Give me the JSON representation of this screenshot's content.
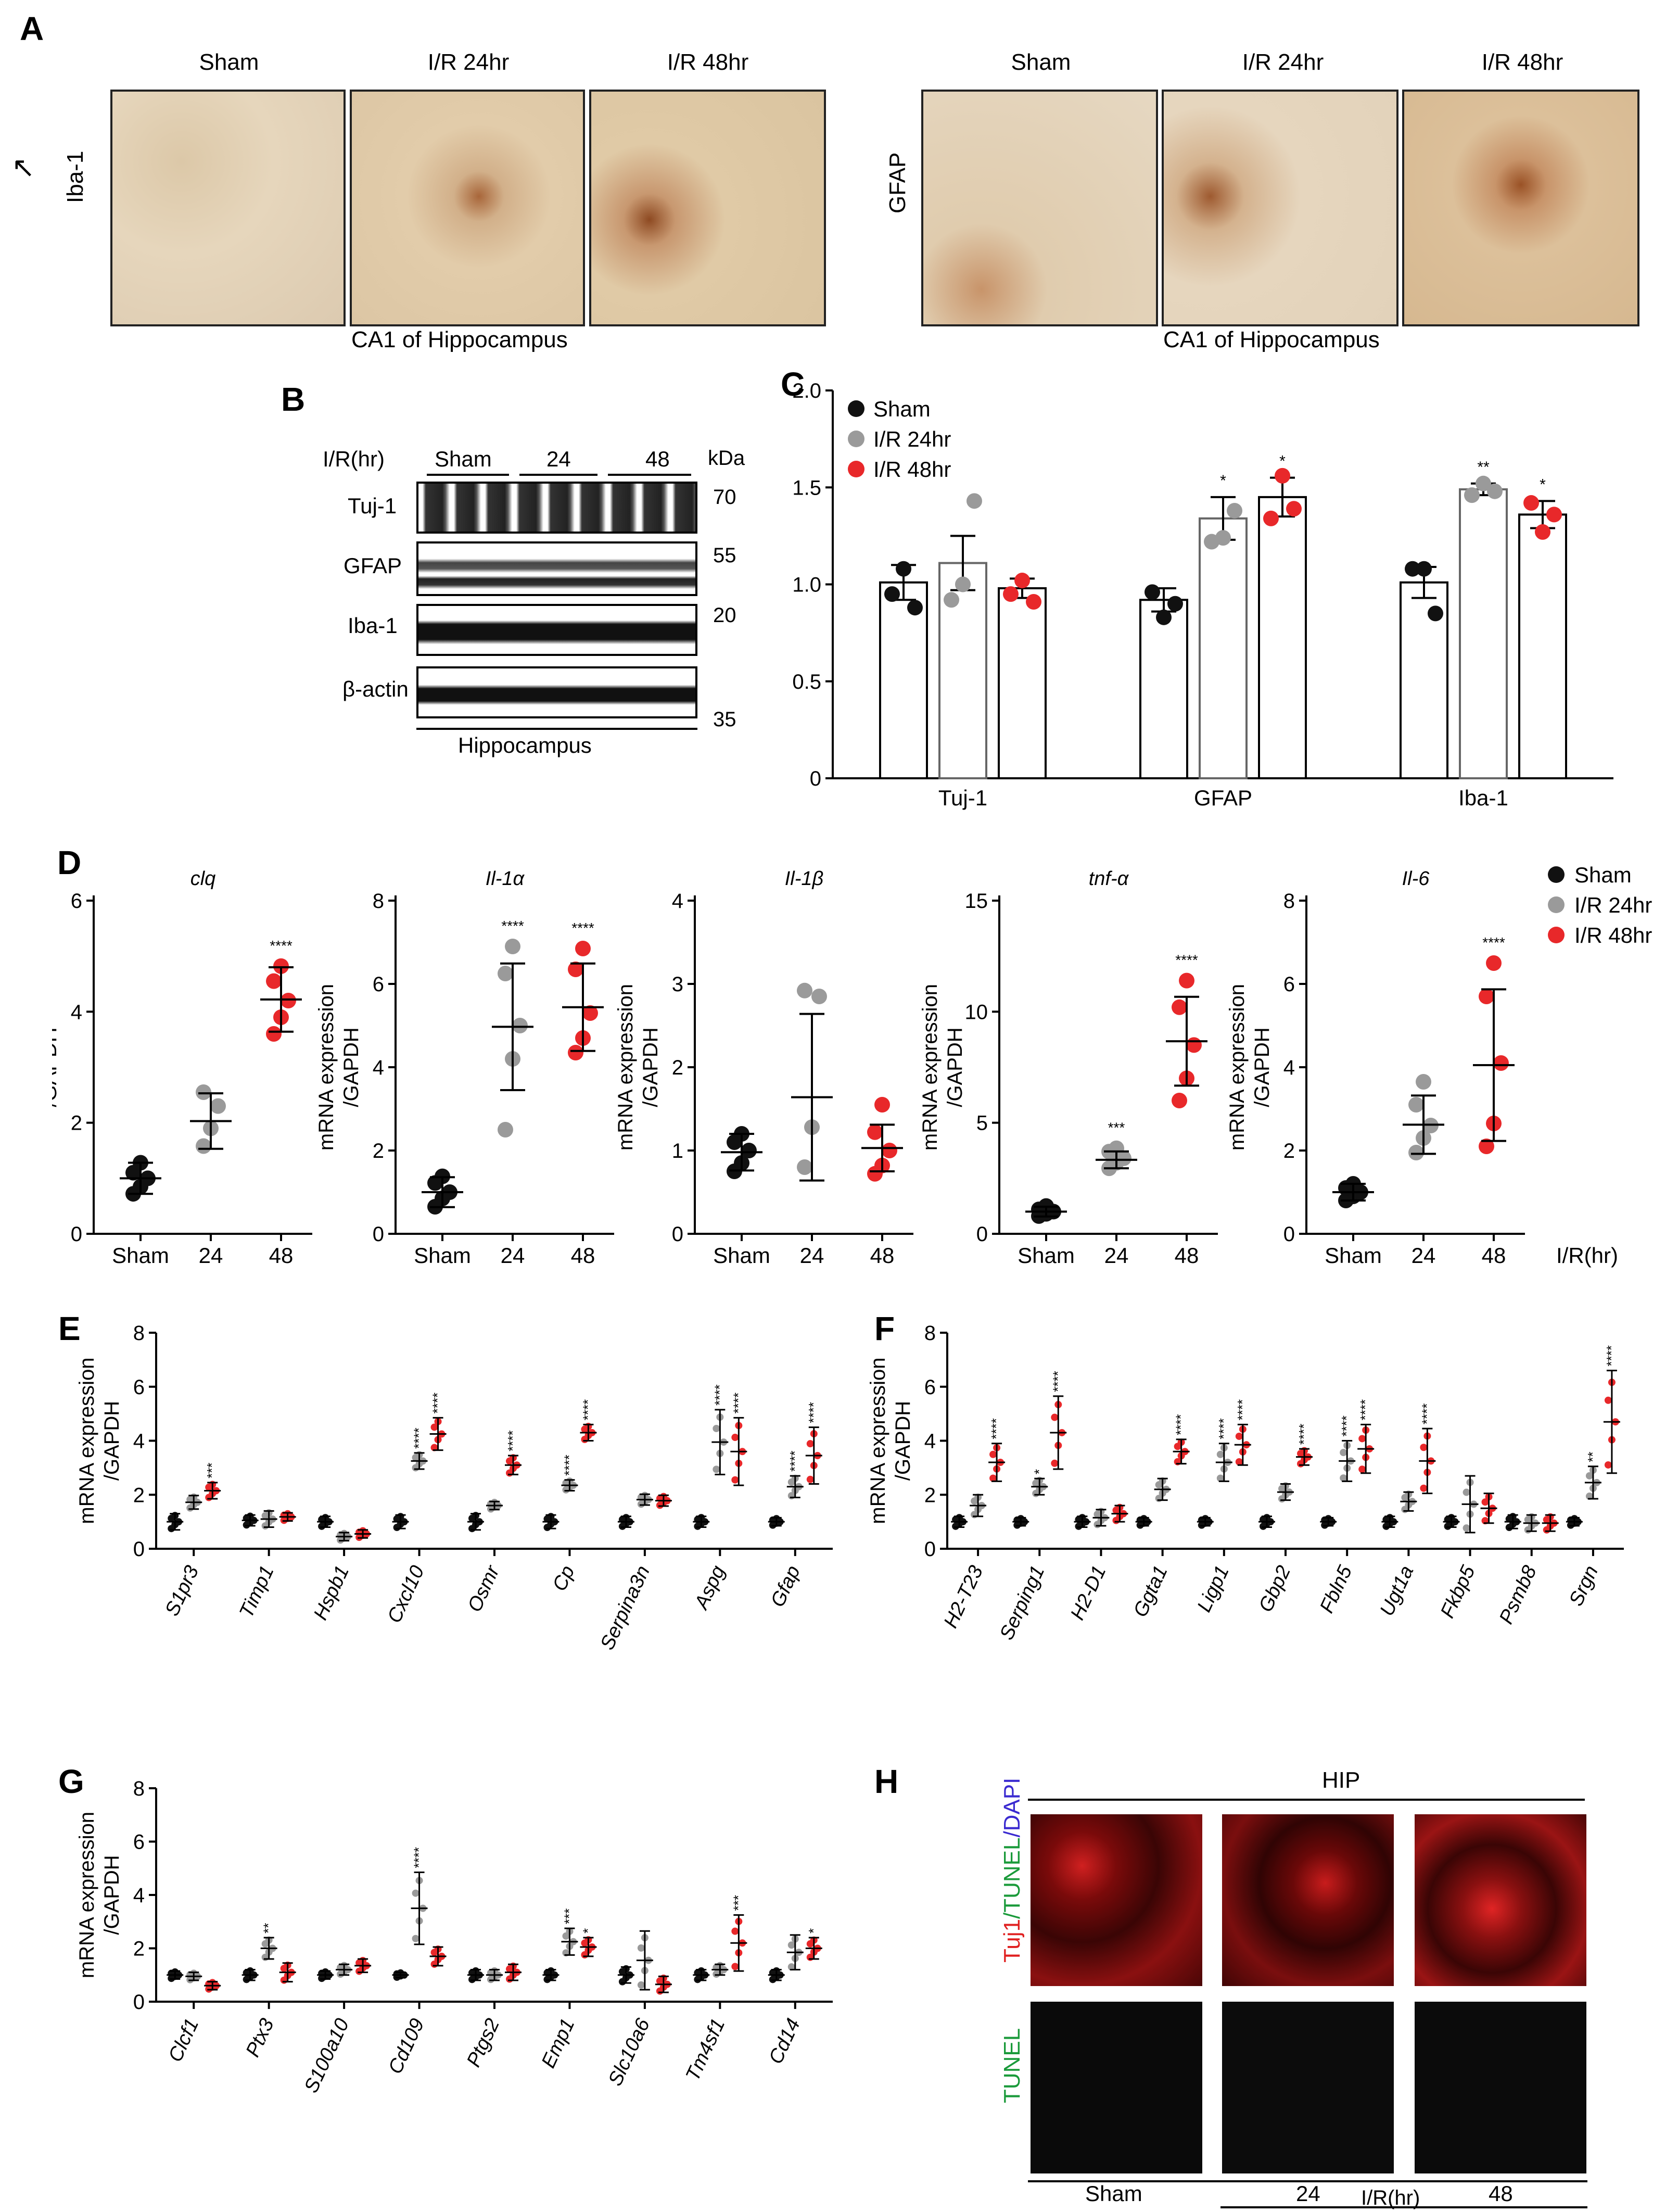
{
  "panelA": {
    "label": "A",
    "left": {
      "stain": "Iba-1",
      "columns": [
        "Sham",
        "I/R 24hr",
        "I/R 48hr"
      ],
      "caption": "CA1 of Hippocampus"
    },
    "right": {
      "stain": "GFAP",
      "columns": [
        "Sham",
        "I/R 24hr",
        "I/R 48hr"
      ],
      "caption": "CA1 of Hippocampus"
    },
    "marker_icon": "arrow-icon"
  },
  "panelB": {
    "label": "B",
    "header": "I/R(hr)",
    "groups": [
      "Sham",
      "24",
      "48"
    ],
    "kda_label": "kDa",
    "rows": [
      {
        "name": "Tuj-1",
        "kda": "70"
      },
      {
        "name": "GFAP",
        "kda": "55"
      },
      {
        "name": "Iba-1",
        "kda": "20"
      },
      {
        "name": "β-actin",
        "kda": "35"
      }
    ],
    "footer": "Hippocampus"
  },
  "panelD_common": {
    "label": "D",
    "ylabel_line1": "mRNA expression",
    "ylabel_line2": "/GAPDH",
    "x_categories": [
      "Sham",
      "24",
      "48"
    ],
    "x_unit": "I/R(hr)",
    "legend": [
      "Sham",
      "I/R 24hr",
      "I/R 48hr"
    ]
  },
  "panelEFG_common": {
    "ylabel_line1": "mRNA expression",
    "ylabel_line2": "/GAPDH"
  },
  "panelE": {
    "label": "E"
  },
  "panelF": {
    "label": "F"
  },
  "panelG": {
    "label": "G"
  },
  "panelH": {
    "label": "H",
    "region": "HIP",
    "row1_label_parts": [
      "Tuj1",
      "/",
      "TUNEL",
      "/",
      "DAPI"
    ],
    "row2_label": "TUNEL",
    "columns": [
      "Sham",
      "24",
      "48"
    ],
    "axis_label": "I/R(hr)"
  },
  "colors": {
    "sham": "#111111",
    "ir24": "#9a9a9a",
    "ir48": "#e8282a",
    "tuj1": "#e02020",
    "tunel": "#1a9a3a",
    "dapi": "#3a2ad0"
  },
  "chart_data": [
    {
      "id": "C",
      "label": "C",
      "type": "bar",
      "categories": [
        "Tuj-1",
        "GFAP",
        "Iba-1"
      ],
      "series": [
        {
          "name": "Sham",
          "values": [
            1.01,
            0.92,
            1.01
          ],
          "sem": [
            0.09,
            0.06,
            0.08
          ],
          "points": [
            [
              0.95,
              1.08,
              0.88
            ],
            [
              0.96,
              0.83,
              0.9
            ],
            [
              1.08,
              1.08,
              0.85
            ]
          ],
          "sig": [
            "",
            "",
            ""
          ]
        },
        {
          "name": "I/R 24hr",
          "values": [
            1.11,
            1.34,
            1.49
          ],
          "sem": [
            0.14,
            0.11,
            0.03
          ],
          "points": [
            [
              0.92,
              1.0,
              1.43
            ],
            [
              1.22,
              1.24,
              1.38
            ],
            [
              1.46,
              1.52,
              1.48
            ]
          ],
          "sig": [
            "",
            "*",
            "**"
          ]
        },
        {
          "name": "I/R 48hr",
          "values": [
            0.98,
            1.45,
            1.36
          ],
          "sem": [
            0.05,
            0.1,
            0.07
          ],
          "points": [
            [
              0.95,
              1.02,
              0.91
            ],
            [
              1.34,
              1.56,
              1.39
            ],
            [
              1.42,
              1.27,
              1.36
            ]
          ],
          "sig": [
            "",
            "*",
            "*"
          ]
        }
      ],
      "ylim": [
        0,
        2.0
      ],
      "yticks": [
        "0",
        "0.5",
        "1.0",
        "1.5",
        "2.0"
      ],
      "legend": "top-left"
    },
    {
      "id": "D1",
      "type": "scatter",
      "title": "clq",
      "categories": [
        "Sham",
        "24",
        "48"
      ],
      "mean": [
        1.0,
        2.03,
        4.22
      ],
      "sd": [
        0.28,
        0.5,
        0.58
      ],
      "points": [
        [
          0.72,
          0.85,
          1.0,
          1.1,
          1.28
        ],
        [
          1.58,
          1.9,
          2.3,
          2.55
        ],
        [
          3.6,
          3.9,
          4.2,
          4.55,
          4.82
        ]
      ],
      "sig": [
        "",
        "",
        "****"
      ],
      "ylim": [
        0,
        6
      ],
      "yticks": [
        "0",
        "2",
        "4",
        "6"
      ]
    },
    {
      "id": "D2",
      "type": "scatter",
      "title": "Il-1α",
      "categories": [
        "Sham",
        "24",
        "48"
      ],
      "mean": [
        1.0,
        4.97,
        5.44
      ],
      "sd": [
        0.36,
        1.52,
        1.05
      ],
      "points": [
        [
          0.65,
          0.85,
          1.0,
          1.22,
          1.38
        ],
        [
          2.5,
          4.2,
          5.0,
          6.25,
          6.9
        ],
        [
          4.35,
          4.7,
          5.3,
          6.35,
          6.85
        ]
      ],
      "sig": [
        "",
        "****",
        "****"
      ],
      "ylim": [
        0,
        8
      ],
      "yticks": [
        "0",
        "2",
        "4",
        "6",
        "8"
      ]
    },
    {
      "id": "D3",
      "type": "scatter",
      "title": "Il-1β",
      "categories": [
        "Sham",
        "24",
        "48"
      ],
      "mean": [
        0.98,
        1.64,
        1.03
      ],
      "sd": [
        0.22,
        1.0,
        0.28
      ],
      "points": [
        [
          0.75,
          0.85,
          1.0,
          1.1,
          1.2
        ],
        [
          0.8,
          1.28,
          2.85,
          2.92
        ],
        [
          0.72,
          0.82,
          1.0,
          1.22,
          1.55
        ]
      ],
      "sig": [
        "",
        "",
        ""
      ],
      "ylim": [
        0,
        4
      ],
      "yticks": [
        "0",
        "1",
        "2",
        "3",
        "4"
      ]
    },
    {
      "id": "D4",
      "type": "scatter",
      "title": "tnf-α",
      "categories": [
        "Sham",
        "24",
        "48"
      ],
      "mean": [
        1.0,
        3.33,
        8.67
      ],
      "sd": [
        0.22,
        0.38,
        2.0
      ],
      "points": [
        [
          0.8,
          0.9,
          1.0,
          1.1,
          1.25
        ],
        [
          2.95,
          3.2,
          3.4,
          3.7,
          3.85
        ],
        [
          6.0,
          7.0,
          8.5,
          10.2,
          11.4
        ]
      ],
      "sig": [
        "",
        "***",
        "****"
      ],
      "ylim": [
        0,
        15
      ],
      "yticks": [
        "0",
        "5",
        "10",
        "15"
      ]
    },
    {
      "id": "D5",
      "type": "scatter",
      "title": "Il-6",
      "categories": [
        "Sham",
        "24",
        "48"
      ],
      "mean": [
        1.0,
        2.62,
        4.05
      ],
      "sd": [
        0.2,
        0.7,
        1.82
      ],
      "points": [
        [
          0.8,
          0.9,
          1.0,
          1.1,
          1.2
        ],
        [
          1.95,
          2.3,
          2.6,
          3.1,
          3.65
        ],
        [
          2.1,
          2.65,
          4.1,
          5.7,
          6.5
        ]
      ],
      "sig": [
        "",
        "",
        "****"
      ],
      "ylim": [
        0,
        8
      ],
      "yticks": [
        "0",
        "2",
        "4",
        "6",
        "8"
      ]
    },
    {
      "id": "E",
      "type": "scatter",
      "categories": [
        "S1pr3",
        "Timp1",
        "Hspb1",
        "Cxcl10",
        "Osmr",
        "Cp",
        "Serpina3n",
        "Aspg",
        "Gfap"
      ],
      "mean": [
        [
          1.0,
          1.72,
          2.15
        ],
        [
          1.05,
          1.1,
          1.18
        ],
        [
          1.0,
          0.45,
          0.55
        ],
        [
          1.0,
          3.25,
          4.25
        ],
        [
          1.0,
          1.6,
          3.1
        ],
        [
          1.0,
          2.35,
          4.3
        ],
        [
          1.0,
          1.82,
          1.78
        ],
        [
          1.0,
          3.95,
          3.6
        ],
        [
          1.0,
          2.3,
          3.45
        ]
      ],
      "sd": [
        [
          0.3,
          0.25,
          0.3
        ],
        [
          0.2,
          0.3,
          0.15
        ],
        [
          0.2,
          0.15,
          0.15
        ],
        [
          0.25,
          0.3,
          0.6
        ],
        [
          0.3,
          0.15,
          0.35
        ],
        [
          0.25,
          0.2,
          0.3
        ],
        [
          0.2,
          0.2,
          0.2
        ],
        [
          0.2,
          1.2,
          1.25
        ],
        [
          0.15,
          0.4,
          1.05
        ]
      ],
      "sig": [
        [
          "",
          "",
          "***"
        ],
        [
          "",
          "",
          ""
        ],
        [
          "",
          "",
          ""
        ],
        [
          "",
          "****",
          "****"
        ],
        [
          "",
          "",
          "****"
        ],
        [
          "",
          "****",
          "****"
        ],
        [
          "",
          "",
          ""
        ],
        [
          "",
          "****",
          "****"
        ],
        [
          "",
          "****",
          "****"
        ]
      ],
      "ylim": [
        0,
        8
      ],
      "yticks": [
        "0",
        "2",
        "4",
        "6",
        "8"
      ]
    },
    {
      "id": "F",
      "type": "scatter",
      "categories": [
        "H2-T23",
        "Serping1",
        "H2-D1",
        "Ggta1",
        "Ligp1",
        "Gbp2",
        "Fbln5",
        "Ugt1a",
        "Fkbp5",
        "Psmb8",
        "Srgn"
      ],
      "mean": [
        [
          1.0,
          1.6,
          3.2
        ],
        [
          1.0,
          2.3,
          4.3
        ],
        [
          1.0,
          1.15,
          1.3
        ],
        [
          1.0,
          2.2,
          3.6
        ],
        [
          1.0,
          3.2,
          3.85
        ],
        [
          1.0,
          2.1,
          3.4
        ],
        [
          1.0,
          3.25,
          3.7
        ],
        [
          1.0,
          1.75,
          3.25
        ],
        [
          1.0,
          1.65,
          1.5
        ],
        [
          1.0,
          0.95,
          0.95
        ],
        [
          1.0,
          2.45,
          4.7
        ]
      ],
      "sd": [
        [
          0.2,
          0.4,
          0.7
        ],
        [
          0.15,
          0.3,
          1.35
        ],
        [
          0.2,
          0.3,
          0.3
        ],
        [
          0.15,
          0.4,
          0.45
        ],
        [
          0.15,
          0.7,
          0.75
        ],
        [
          0.2,
          0.3,
          0.3
        ],
        [
          0.15,
          0.75,
          0.9
        ],
        [
          0.2,
          0.35,
          1.2
        ],
        [
          0.2,
          1.05,
          0.55
        ],
        [
          0.25,
          0.3,
          0.3
        ],
        [
          0.15,
          0.6,
          1.9
        ]
      ],
      "sig": [
        [
          "",
          "",
          "****"
        ],
        [
          "",
          "*",
          "****"
        ],
        [
          "",
          "",
          ""
        ],
        [
          "",
          "",
          "****"
        ],
        [
          "",
          "****",
          "****"
        ],
        [
          "",
          "",
          "****"
        ],
        [
          "",
          "****",
          "****"
        ],
        [
          "",
          "",
          "****"
        ],
        [
          "",
          "",
          ""
        ],
        [
          "",
          "",
          ""
        ],
        [
          "",
          "**",
          "****"
        ]
      ],
      "ylim": [
        0,
        8
      ],
      "yticks": [
        "0",
        "2",
        "4",
        "6",
        "8"
      ]
    },
    {
      "id": "G",
      "type": "scatter",
      "categories": [
        "Clcf1",
        "Ptx3",
        "S100a10",
        "Cd109",
        "Ptgs2",
        "Emp1",
        "Slc10a6",
        "Tm4sf1",
        "Cd14"
      ],
      "mean": [
        [
          1.0,
          0.95,
          0.6
        ],
        [
          1.0,
          2.0,
          1.1
        ],
        [
          1.0,
          1.2,
          1.35
        ],
        [
          1.0,
          3.5,
          1.7
        ],
        [
          1.0,
          1.0,
          1.1
        ],
        [
          1.0,
          2.25,
          2.05
        ],
        [
          1.0,
          1.55,
          0.65
        ],
        [
          1.0,
          1.2,
          2.2
        ],
        [
          1.0,
          1.85,
          2.0
        ]
      ],
      "sd": [
        [
          0.15,
          0.15,
          0.15
        ],
        [
          0.2,
          0.4,
          0.35
        ],
        [
          0.15,
          0.2,
          0.25
        ],
        [
          0.1,
          1.35,
          0.35
        ],
        [
          0.2,
          0.2,
          0.3
        ],
        [
          0.2,
          0.5,
          0.35
        ],
        [
          0.3,
          1.1,
          0.3
        ],
        [
          0.2,
          0.2,
          1.05
        ],
        [
          0.2,
          0.65,
          0.4
        ]
      ],
      "sig": [
        [
          "",
          "",
          ""
        ],
        [
          "",
          "**",
          ""
        ],
        [
          "",
          "",
          ""
        ],
        [
          "",
          "****",
          ""
        ],
        [
          "",
          "",
          ""
        ],
        [
          "",
          "***",
          "*"
        ],
        [
          "",
          "",
          ""
        ],
        [
          "",
          "",
          "***"
        ],
        [
          "",
          "",
          "*"
        ]
      ],
      "ylim": [
        0,
        8
      ],
      "yticks": [
        "0",
        "2",
        "4",
        "6",
        "8"
      ]
    }
  ]
}
